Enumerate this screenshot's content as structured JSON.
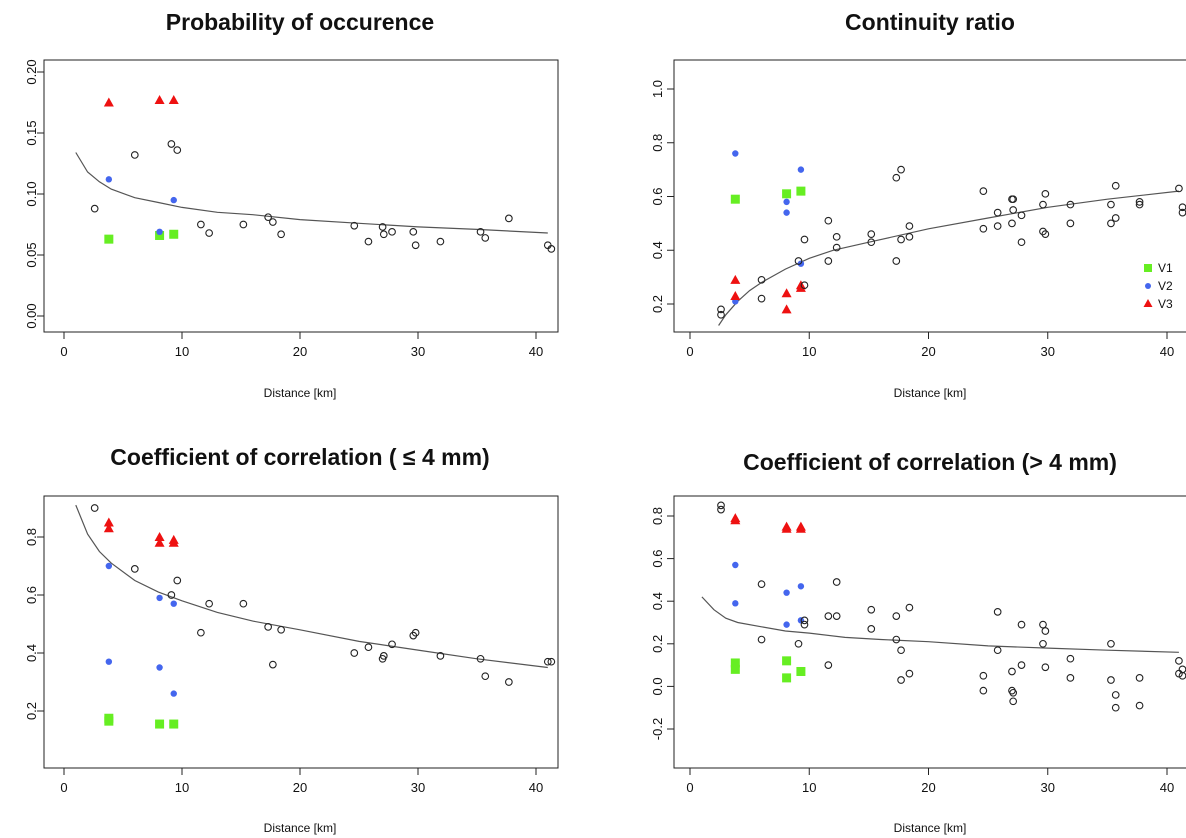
{
  "colors": {
    "V1": "#66ee22",
    "V2": "#4466ee",
    "V3": "#ee1111",
    "other": "#222222",
    "curve": "#555555"
  },
  "chart_data": [
    {
      "type": "scatter",
      "title": "Probability of occurence",
      "xlabel": "Distance [km]",
      "ylabel": "",
      "xlim": [
        0,
        41
      ],
      "ylim": [
        0,
        0.2
      ],
      "xticks": [
        "0",
        "10",
        "20",
        "30",
        "40"
      ],
      "yticks": [
        "0.00",
        "0.05",
        "0.10",
        "0.15",
        "0.20"
      ],
      "series": [
        {
          "name": "V1",
          "marker": "square",
          "points": [
            [
              3.8,
              0.063
            ],
            [
              8.1,
              0.066
            ],
            [
              9.3,
              0.067
            ]
          ]
        },
        {
          "name": "V2",
          "marker": "dot",
          "points": [
            [
              3.8,
              0.112
            ],
            [
              8.1,
              0.069
            ],
            [
              9.3,
              0.095
            ]
          ]
        },
        {
          "name": "V3",
          "marker": "triangle",
          "points": [
            [
              3.8,
              0.175
            ],
            [
              8.1,
              0.177
            ],
            [
              9.3,
              0.177
            ]
          ]
        },
        {
          "name": "",
          "marker": "circle",
          "points": [
            [
              2.6,
              0.088
            ],
            [
              6.0,
              0.132
            ],
            [
              9.1,
              0.141
            ],
            [
              9.6,
              0.136
            ],
            [
              11.6,
              0.075
            ],
            [
              12.3,
              0.068
            ],
            [
              15.2,
              0.075
            ],
            [
              17.3,
              0.081
            ],
            [
              17.7,
              0.077
            ],
            [
              18.4,
              0.067
            ],
            [
              24.6,
              0.074
            ],
            [
              25.8,
              0.061
            ],
            [
              27.0,
              0.073
            ],
            [
              27.1,
              0.067
            ],
            [
              27.8,
              0.069
            ],
            [
              29.6,
              0.069
            ],
            [
              29.8,
              0.058
            ],
            [
              31.9,
              0.061
            ],
            [
              35.3,
              0.069
            ],
            [
              35.7,
              0.064
            ],
            [
              37.7,
              0.08
            ],
            [
              41.0,
              0.058
            ],
            [
              41.3,
              0.055
            ]
          ]
        }
      ],
      "curve": [
        [
          1.0,
          0.134
        ],
        [
          2.0,
          0.118
        ],
        [
          3.0,
          0.11
        ],
        [
          4.0,
          0.104
        ],
        [
          6.0,
          0.097
        ],
        [
          8.0,
          0.093
        ],
        [
          10.0,
          0.089
        ],
        [
          13.0,
          0.085
        ],
        [
          16.0,
          0.083
        ],
        [
          20.0,
          0.079
        ],
        [
          25.0,
          0.076
        ],
        [
          30.0,
          0.073
        ],
        [
          35.0,
          0.071
        ],
        [
          41.0,
          0.068
        ]
      ]
    },
    {
      "type": "scatter",
      "title": "Continuity ratio",
      "xlabel": "Distance [km]",
      "ylabel": "",
      "xlim": [
        0,
        41
      ],
      "ylim": [
        0.1,
        1.05
      ],
      "xticks": [
        "0",
        "10",
        "20",
        "30",
        "40"
      ],
      "yticks": [
        "0.2",
        "0.4",
        "0.6",
        "0.8",
        "1.0"
      ],
      "legend": {
        "position": "bottom-right",
        "entries": [
          "V1",
          "V2",
          "V3"
        ]
      },
      "series": [
        {
          "name": "V1",
          "marker": "square",
          "points": [
            [
              3.8,
              0.59
            ],
            [
              8.1,
              0.61
            ],
            [
              9.3,
              0.62
            ]
          ]
        },
        {
          "name": "V2",
          "marker": "dot",
          "points": [
            [
              3.8,
              0.76
            ],
            [
              3.8,
              0.21
            ],
            [
              8.1,
              0.58
            ],
            [
              8.1,
              0.54
            ],
            [
              9.3,
              0.7
            ],
            [
              9.3,
              0.35
            ]
          ]
        },
        {
          "name": "V3",
          "marker": "triangle",
          "points": [
            [
              3.8,
              0.29
            ],
            [
              3.8,
              0.23
            ],
            [
              8.1,
              0.24
            ],
            [
              8.1,
              0.18
            ],
            [
              9.3,
              0.27
            ],
            [
              9.3,
              0.26
            ]
          ]
        },
        {
          "name": "",
          "marker": "circle",
          "points": [
            [
              2.6,
              0.18
            ],
            [
              2.6,
              0.16
            ],
            [
              6.0,
              0.29
            ],
            [
              6.0,
              0.22
            ],
            [
              9.1,
              0.36
            ],
            [
              9.6,
              0.44
            ],
            [
              9.6,
              0.27
            ],
            [
              11.6,
              0.51
            ],
            [
              11.6,
              0.36
            ],
            [
              12.3,
              0.45
            ],
            [
              12.3,
              0.41
            ],
            [
              15.2,
              0.46
            ],
            [
              15.2,
              0.43
            ],
            [
              17.3,
              0.67
            ],
            [
              17.3,
              0.36
            ],
            [
              17.7,
              0.7
            ],
            [
              17.7,
              0.44
            ],
            [
              18.4,
              0.49
            ],
            [
              18.4,
              0.45
            ],
            [
              24.6,
              0.62
            ],
            [
              24.6,
              0.48
            ],
            [
              25.8,
              0.54
            ],
            [
              25.8,
              0.49
            ],
            [
              27.0,
              0.59
            ],
            [
              27.0,
              0.5
            ],
            [
              27.1,
              0.59
            ],
            [
              27.1,
              0.55
            ],
            [
              27.8,
              0.53
            ],
            [
              27.8,
              0.43
            ],
            [
              29.6,
              0.57
            ],
            [
              29.6,
              0.47
            ],
            [
              29.8,
              0.61
            ],
            [
              29.8,
              0.46
            ],
            [
              31.9,
              0.57
            ],
            [
              31.9,
              0.5
            ],
            [
              35.3,
              0.57
            ],
            [
              35.3,
              0.5
            ],
            [
              35.7,
              0.64
            ],
            [
              35.7,
              0.52
            ],
            [
              37.7,
              0.58
            ],
            [
              37.7,
              0.57
            ],
            [
              41.0,
              0.63
            ],
            [
              41.3,
              0.56
            ],
            [
              41.3,
              0.54
            ]
          ]
        }
      ],
      "curve": [
        [
          2.4,
          0.12
        ],
        [
          3.0,
          0.16
        ],
        [
          4.0,
          0.21
        ],
        [
          5.0,
          0.25
        ],
        [
          6.0,
          0.28
        ],
        [
          8.0,
          0.33
        ],
        [
          10.0,
          0.37
        ],
        [
          12.0,
          0.4
        ],
        [
          15.0,
          0.43
        ],
        [
          20.0,
          0.48
        ],
        [
          25.0,
          0.52
        ],
        [
          30.0,
          0.56
        ],
        [
          35.0,
          0.59
        ],
        [
          41.0,
          0.62
        ]
      ]
    },
    {
      "type": "scatter",
      "title": "Coefficient of correlation ( ≤ 4 mm)",
      "xlabel": "Distance [km]",
      "ylabel": "",
      "xlim": [
        0,
        41
      ],
      "ylim": [
        0.1,
        0.92
      ],
      "xticks": [
        "0",
        "10",
        "20",
        "30",
        "40"
      ],
      "yticks": [
        "0.2",
        "0.4",
        "0.6",
        "0.8"
      ],
      "series": [
        {
          "name": "V1",
          "marker": "square",
          "points": [
            [
              3.8,
              0.175
            ],
            [
              3.8,
              0.165
            ],
            [
              8.1,
              0.155
            ],
            [
              9.3,
              0.155
            ]
          ]
        },
        {
          "name": "V2",
          "marker": "dot",
          "points": [
            [
              3.8,
              0.7
            ],
            [
              3.8,
              0.37
            ],
            [
              8.1,
              0.59
            ],
            [
              8.1,
              0.35
            ],
            [
              9.3,
              0.57
            ],
            [
              9.3,
              0.26
            ]
          ]
        },
        {
          "name": "V3",
          "marker": "triangle",
          "points": [
            [
              3.8,
              0.85
            ],
            [
              3.8,
              0.83
            ],
            [
              8.1,
              0.8
            ],
            [
              8.1,
              0.78
            ],
            [
              9.3,
              0.79
            ],
            [
              9.3,
              0.78
            ]
          ]
        },
        {
          "name": "",
          "marker": "circle",
          "points": [
            [
              2.6,
              0.9
            ],
            [
              6.0,
              0.69
            ],
            [
              9.1,
              0.6
            ],
            [
              9.6,
              0.65
            ],
            [
              11.6,
              0.47
            ],
            [
              12.3,
              0.57
            ],
            [
              15.2,
              0.57
            ],
            [
              17.3,
              0.49
            ],
            [
              17.7,
              0.36
            ],
            [
              18.4,
              0.48
            ],
            [
              24.6,
              0.4
            ],
            [
              25.8,
              0.42
            ],
            [
              27.0,
              0.38
            ],
            [
              27.1,
              0.39
            ],
            [
              27.8,
              0.43
            ],
            [
              29.6,
              0.46
            ],
            [
              29.8,
              0.47
            ],
            [
              31.9,
              0.39
            ],
            [
              35.3,
              0.38
            ],
            [
              35.7,
              0.32
            ],
            [
              37.7,
              0.3
            ],
            [
              41.0,
              0.37
            ],
            [
              41.3,
              0.37
            ]
          ]
        }
      ],
      "curve": [
        [
          1.0,
          0.91
        ],
        [
          2.0,
          0.81
        ],
        [
          3.0,
          0.75
        ],
        [
          4.0,
          0.71
        ],
        [
          6.0,
          0.65
        ],
        [
          8.0,
          0.61
        ],
        [
          10.0,
          0.58
        ],
        [
          13.0,
          0.54
        ],
        [
          16.0,
          0.51
        ],
        [
          20.0,
          0.48
        ],
        [
          25.0,
          0.44
        ],
        [
          30.0,
          0.41
        ],
        [
          35.0,
          0.38
        ],
        [
          41.0,
          0.35
        ]
      ]
    },
    {
      "type": "scatter",
      "title": "Coefficient of correlation (> 4 mm)",
      "xlabel": "Distance [km]",
      "ylabel": "",
      "xlim": [
        0,
        41
      ],
      "ylim": [
        -0.27,
        0.88
      ],
      "xticks": [
        "0",
        "10",
        "20",
        "30",
        "40"
      ],
      "yticks": [
        "-0.2",
        "0.0",
        "0.2",
        "0.4",
        "0.6",
        "0.8"
      ],
      "series": [
        {
          "name": "V1",
          "marker": "square",
          "points": [
            [
              3.8,
              0.11
            ],
            [
              3.8,
              0.08
            ],
            [
              8.1,
              0.12
            ],
            [
              8.1,
              0.04
            ],
            [
              9.3,
              0.07
            ]
          ]
        },
        {
          "name": "V2",
          "marker": "dot",
          "points": [
            [
              3.8,
              0.57
            ],
            [
              3.8,
              0.39
            ],
            [
              8.1,
              0.44
            ],
            [
              8.1,
              0.29
            ],
            [
              9.3,
              0.47
            ],
            [
              9.3,
              0.31
            ]
          ]
        },
        {
          "name": "V3",
          "marker": "triangle",
          "points": [
            [
              3.8,
              0.79
            ],
            [
              3.8,
              0.78
            ],
            [
              8.1,
              0.75
            ],
            [
              8.1,
              0.74
            ],
            [
              9.3,
              0.75
            ],
            [
              9.3,
              0.74
            ]
          ]
        },
        {
          "name": "",
          "marker": "circle",
          "points": [
            [
              2.6,
              0.85
            ],
            [
              2.6,
              0.83
            ],
            [
              6.0,
              0.48
            ],
            [
              6.0,
              0.22
            ],
            [
              9.1,
              0.2
            ],
            [
              9.6,
              0.31
            ],
            [
              9.6,
              0.29
            ],
            [
              11.6,
              0.33
            ],
            [
              11.6,
              0.1
            ],
            [
              12.3,
              0.49
            ],
            [
              12.3,
              0.33
            ],
            [
              15.2,
              0.36
            ],
            [
              15.2,
              0.27
            ],
            [
              17.3,
              0.33
            ],
            [
              17.3,
              0.22
            ],
            [
              17.7,
              0.17
            ],
            [
              17.7,
              0.03
            ],
            [
              18.4,
              0.37
            ],
            [
              18.4,
              0.06
            ],
            [
              24.6,
              0.05
            ],
            [
              24.6,
              -0.02
            ],
            [
              25.8,
              0.35
            ],
            [
              25.8,
              0.17
            ],
            [
              27.0,
              0.07
            ],
            [
              27.0,
              -0.02
            ],
            [
              27.1,
              -0.03
            ],
            [
              27.1,
              -0.07
            ],
            [
              27.8,
              0.29
            ],
            [
              27.8,
              0.1
            ],
            [
              29.6,
              0.29
            ],
            [
              29.6,
              0.2
            ],
            [
              29.8,
              0.26
            ],
            [
              29.8,
              0.09
            ],
            [
              31.9,
              0.13
            ],
            [
              31.9,
              0.04
            ],
            [
              35.3,
              0.2
            ],
            [
              35.3,
              0.03
            ],
            [
              35.7,
              -0.04
            ],
            [
              35.7,
              -0.1
            ],
            [
              37.7,
              0.04
            ],
            [
              37.7,
              -0.09
            ],
            [
              41.0,
              0.12
            ],
            [
              41.0,
              0.06
            ],
            [
              41.3,
              0.08
            ],
            [
              41.3,
              0.05
            ]
          ]
        }
      ],
      "curve": [
        [
          1.0,
          0.42
        ],
        [
          2.0,
          0.36
        ],
        [
          3.0,
          0.32
        ],
        [
          4.0,
          0.3
        ],
        [
          6.0,
          0.28
        ],
        [
          8.0,
          0.26
        ],
        [
          10.0,
          0.25
        ],
        [
          13.0,
          0.23
        ],
        [
          16.0,
          0.22
        ],
        [
          20.0,
          0.21
        ],
        [
          25.0,
          0.19
        ],
        [
          30.0,
          0.18
        ],
        [
          35.0,
          0.17
        ],
        [
          41.0,
          0.16
        ]
      ]
    }
  ]
}
